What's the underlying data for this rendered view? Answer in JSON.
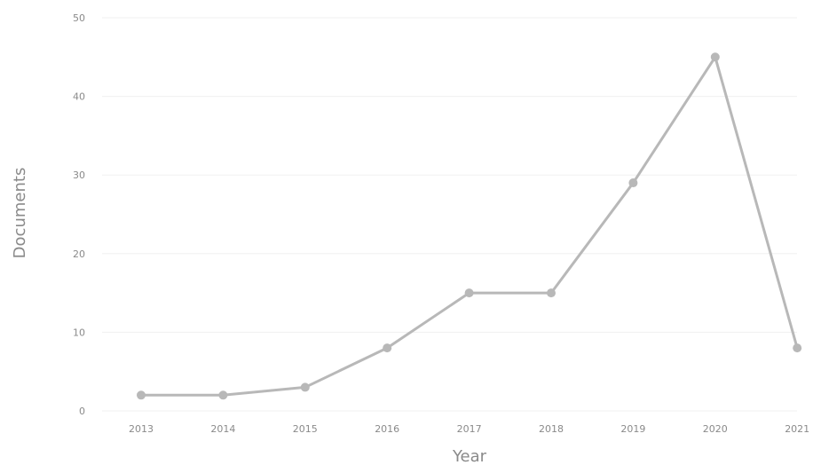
{
  "chart_data": {
    "type": "line",
    "title": "",
    "xlabel": "Year",
    "ylabel": "Documents",
    "categories": [
      "2013",
      "2014",
      "2015",
      "2016",
      "2017",
      "2018",
      "2019",
      "2020",
      "2021"
    ],
    "series": [
      {
        "values": [
          2,
          2,
          3,
          8,
          15,
          15,
          29,
          45,
          8
        ]
      }
    ],
    "ylim": [
      0,
      50
    ],
    "yticks": [
      0,
      10,
      20,
      30,
      40,
      50
    ],
    "grid": true,
    "legend": "none",
    "colors": {
      "series": "#b8b8b8",
      "marker": "#b8b8b8"
    }
  }
}
